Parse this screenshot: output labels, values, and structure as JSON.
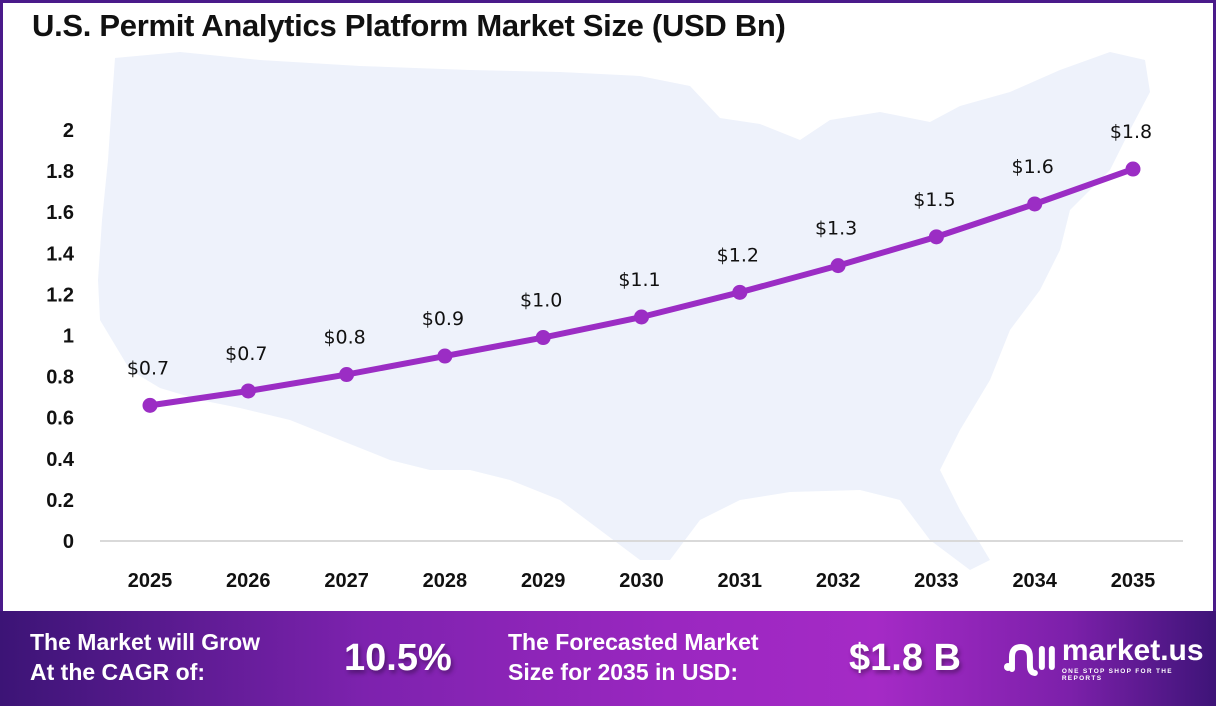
{
  "title": "U.S. Permit Analytics Platform Market Size (USD Bn)",
  "colors": {
    "line": "#9b2dc4",
    "frame": "#4a1a8a",
    "map_fill": "#eef2fb",
    "footer_start": "#3c1476",
    "footer_mid": "#a52ac6"
  },
  "chart_data": {
    "type": "line",
    "title": "U.S. Permit Analytics Platform Market Size (USD Bn)",
    "xlabel": "",
    "ylabel": "",
    "categories": [
      "2025",
      "2026",
      "2027",
      "2028",
      "2029",
      "2030",
      "2031",
      "2032",
      "2033",
      "2034",
      "2035"
    ],
    "series": [
      {
        "name": "Market Size (USD Bn)",
        "values": [
          0.66,
          0.73,
          0.81,
          0.9,
          0.99,
          1.09,
          1.21,
          1.34,
          1.48,
          1.64,
          1.81
        ],
        "data_labels": [
          "$0.7",
          "$0.7",
          "$0.8",
          "$0.9",
          "$1.0",
          "$1.1",
          "$1.2",
          "$1.3",
          "$1.5",
          "$1.6",
          "$1.8"
        ]
      }
    ],
    "ylim": [
      0,
      2
    ],
    "yticks": [
      "0",
      "0.2",
      "0.4",
      "0.6",
      "0.8",
      "1",
      "1.2",
      "1.4",
      "1.6",
      "1.8",
      "2"
    ],
    "grid": false,
    "legend": "none",
    "background": "faint U.S. map silhouette"
  },
  "footer": {
    "cagr_label_line1": "The Market will Grow",
    "cagr_label_line2": "At the CAGR of:",
    "cagr_value": "10.5%",
    "forecast_label_line1": "The Forecasted Market",
    "forecast_label_line2": "Size for 2035 in USD:",
    "forecast_value": "$1.8 B",
    "logo_name": "market.us",
    "logo_tagline": "ONE STOP SHOP FOR THE REPORTS",
    "logo_icon": "market-us-logo-icon"
  }
}
